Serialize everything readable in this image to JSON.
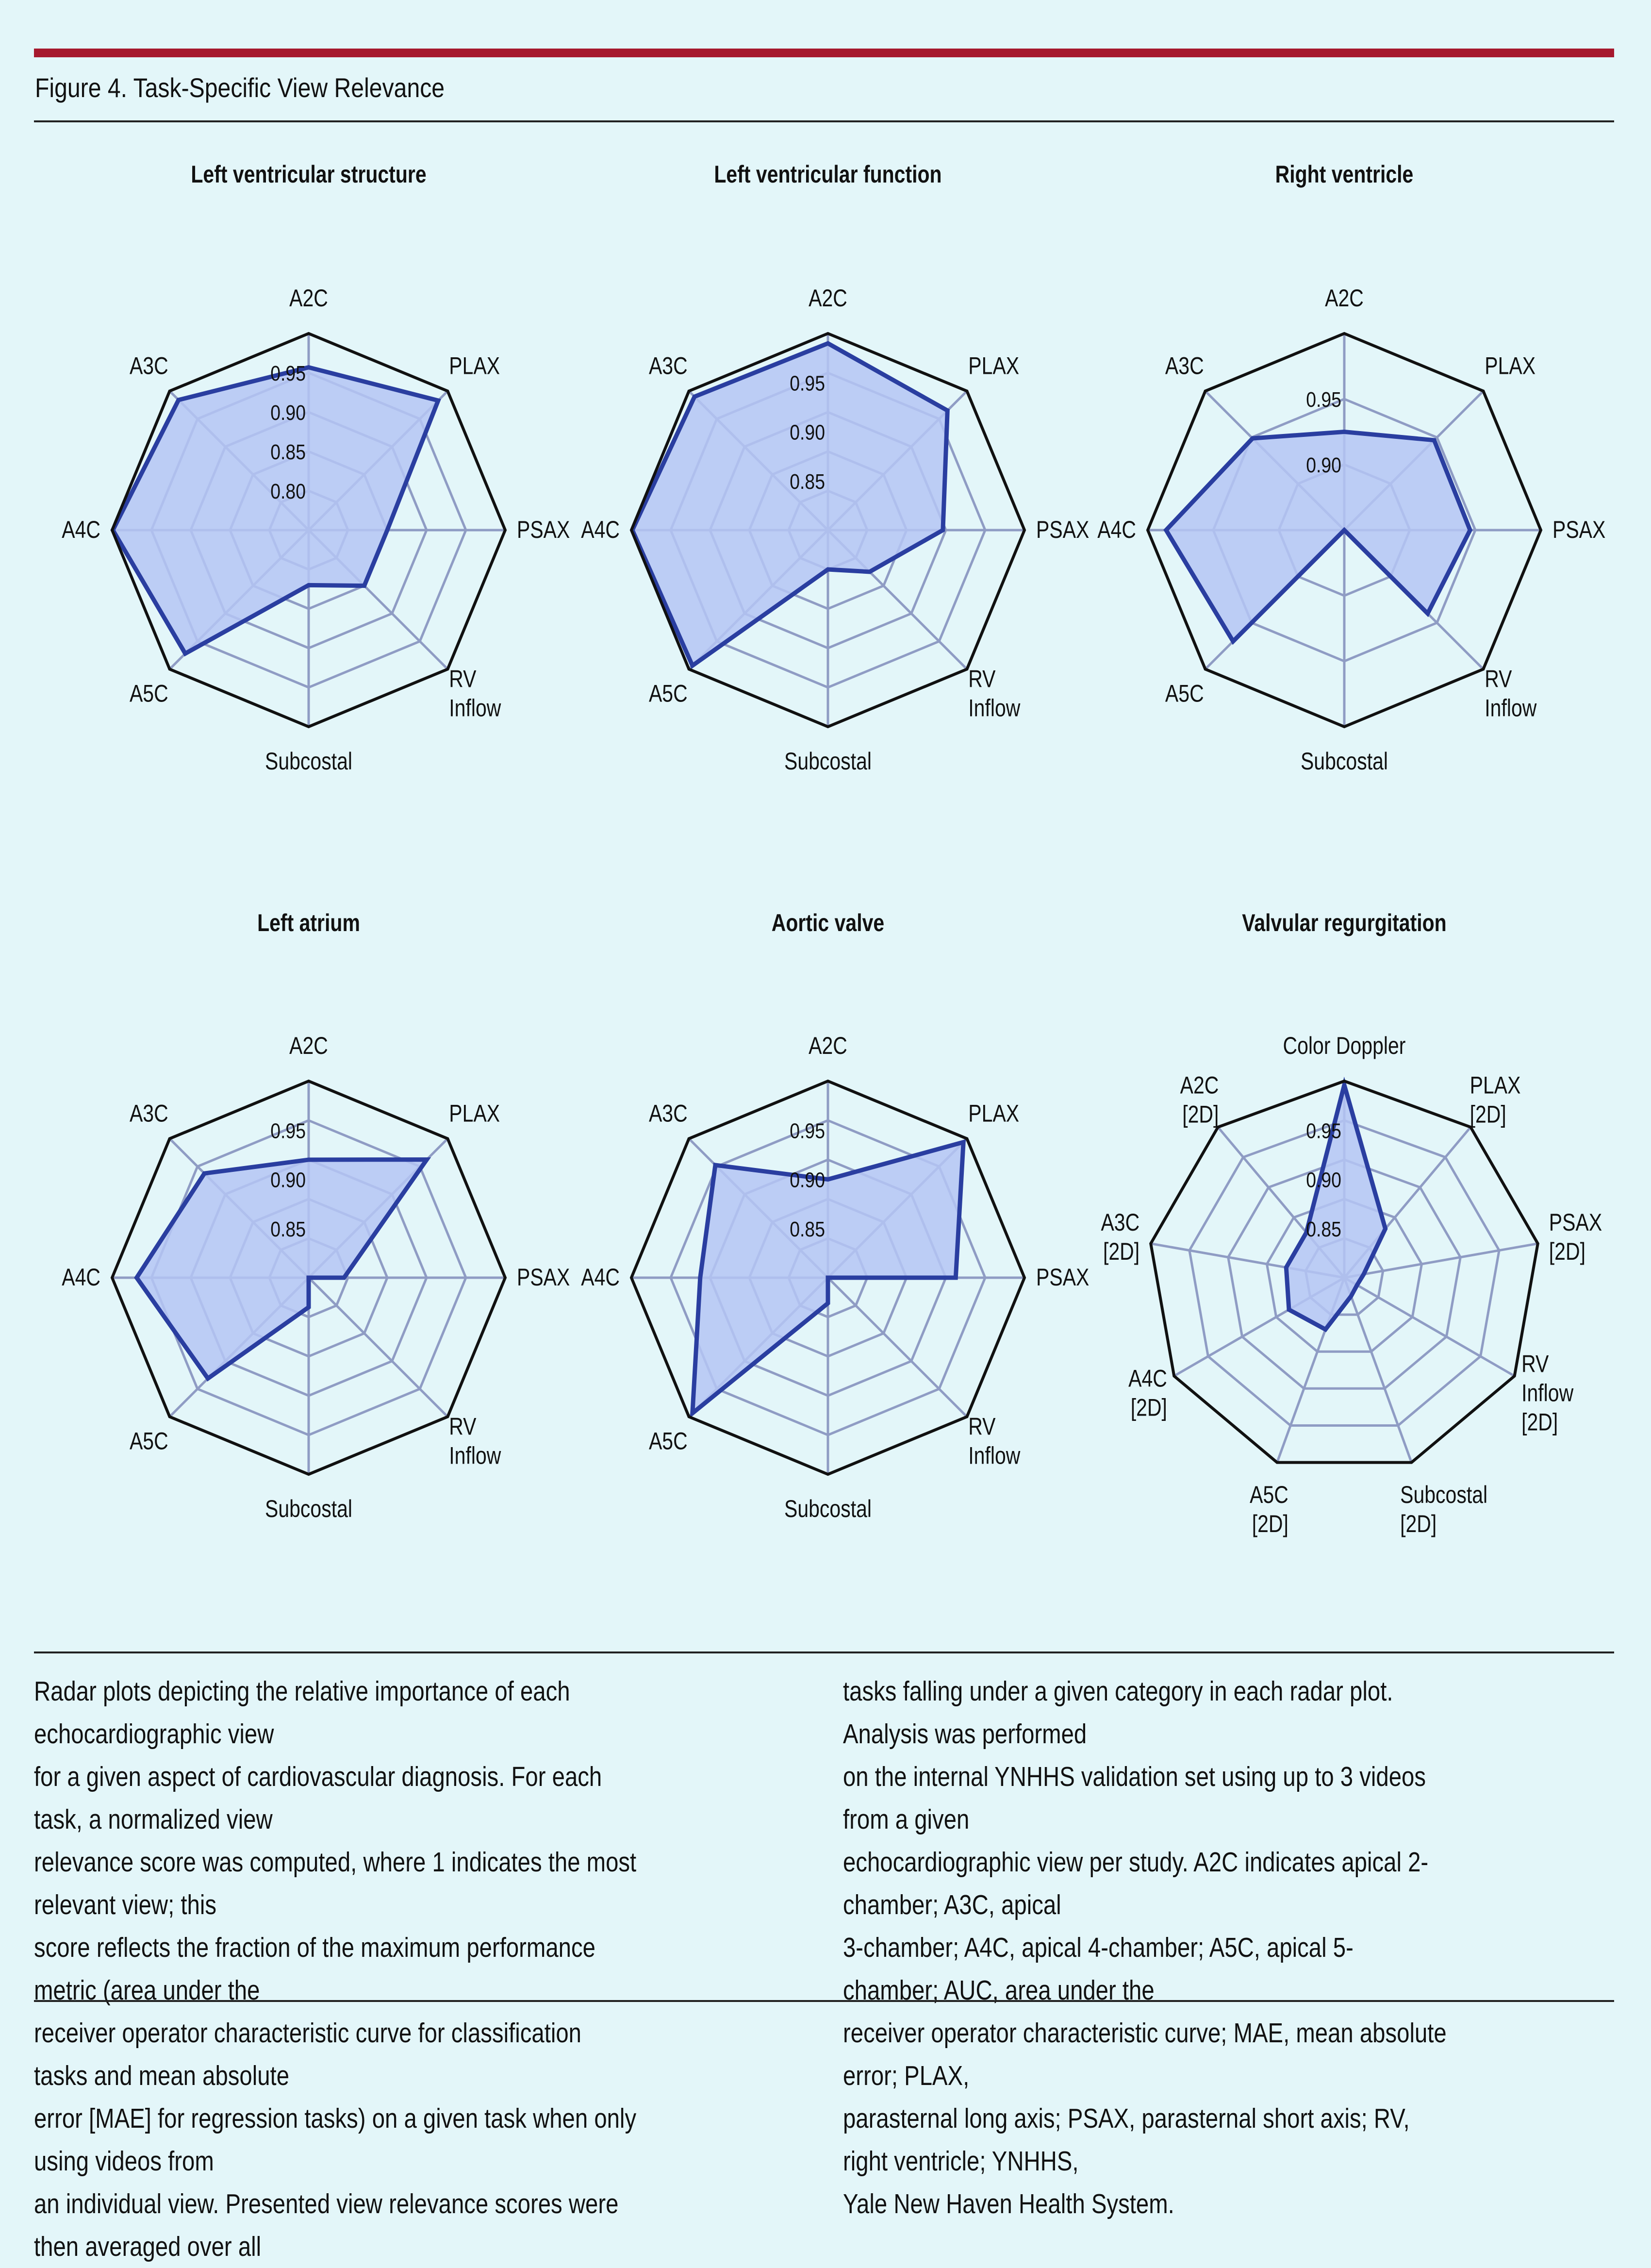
{
  "figure_title": "Figure 4. Task-Specific View Relevance",
  "caption_left": "Radar plots depicting the relative importance of each echocardiographic view\nfor a given aspect of cardiovascular diagnosis. For each task, a normalized view\nrelevance score was computed, where 1 indicates the most relevant view; this\nscore reflects the fraction of the maximum performance metric (area under the\nreceiver operator characteristic curve for classification tasks and mean absolute\nerror [MAE] for regression tasks) on a given task when only using videos from\nan individual view. Presented view relevance scores were then averaged over all",
  "caption_right": "tasks falling under a given category in each radar plot. Analysis was performed\non the internal YNHHS validation set using up to 3 videos from a given\nechocardiographic view per study. A2C indicates apical 2-chamber; A3C, apical\n3-chamber; A4C, apical 4-chamber; A5C, apical 5-chamber; AUC, area under the\nreceiver operator characteristic curve; MAE, mean absolute error; PLAX,\nparasternal long axis; PSAX, parasternal short axis; RV, right ventricle; YNHHS,\nYale New Haven Health System.",
  "colors": {
    "accent_rule": "#a6192e",
    "series_line": "#2a3ea0",
    "series_fill": "#b5c5f4",
    "grid": "#8f9cc4",
    "outline": "#111111"
  },
  "chart_data": [
    {
      "type": "radar",
      "title": "Left ventricular structure",
      "axes": [
        "A2C",
        "PLAX",
        "PSAX",
        "RV Inflow",
        "Subcostal",
        "A5C",
        "A4C",
        "A3C"
      ],
      "tick_labels": [
        "0.80",
        "0.85",
        "0.90",
        "0.95"
      ],
      "rmin": 0.75,
      "rmax": 1.0,
      "rings": 5,
      "values": [
        0.957,
        0.983,
        0.85,
        0.85,
        0.82,
        0.972,
        0.999,
        0.984
      ]
    },
    {
      "type": "radar",
      "title": "Left ventricular function",
      "axes": [
        "A2C",
        "PLAX",
        "PSAX",
        "RV Inflow",
        "Subcostal",
        "A5C",
        "A4C",
        "A3C"
      ],
      "tick_labels": [
        "0.85",
        "0.90",
        "0.95"
      ],
      "rmin": 0.8,
      "rmax": 1.0,
      "rings": 5,
      "values": [
        0.99,
        0.972,
        0.917,
        0.86,
        0.84,
        0.995,
        0.999,
        0.992
      ]
    },
    {
      "type": "radar",
      "title": "Right ventricle",
      "axes": [
        "A2C",
        "PLAX",
        "PSAX",
        "RV Inflow",
        "Subcostal",
        "A5C",
        "A4C",
        "A3C"
      ],
      "tick_labels": [
        "0.90",
        "0.95"
      ],
      "rmin": 0.85,
      "rmax": 1.0,
      "rings": 3,
      "values": [
        0.925,
        0.947,
        0.946,
        0.94,
        0.85,
        0.97,
        0.986,
        0.949
      ]
    },
    {
      "type": "radar",
      "title": "Left atrium",
      "axes": [
        "A2C",
        "PLAX",
        "PSAX",
        "RV Inflow",
        "Subcostal",
        "A5C",
        "A4C",
        "A3C"
      ],
      "tick_labels": [
        "0.85",
        "0.90",
        "0.95"
      ],
      "rmin": 0.8,
      "rmax": 1.0,
      "rings": 5,
      "values": [
        0.92,
        0.97,
        0.836,
        0.8,
        0.83,
        0.945,
        0.975,
        0.95
      ]
    },
    {
      "type": "radar",
      "title": "Aortic valve",
      "axes": [
        "A2C",
        "PLAX",
        "PSAX",
        "RV Inflow",
        "Subcostal",
        "A5C",
        "A4C",
        "A3C"
      ],
      "tick_labels": [
        "0.85",
        "0.90",
        "0.95"
      ],
      "rmin": 0.8,
      "rmax": 1.0,
      "rings": 5,
      "values": [
        0.9,
        0.995,
        0.93,
        0.8,
        0.826,
        0.995,
        0.93,
        0.962
      ]
    },
    {
      "type": "radar",
      "title": "Valvular regurgitation",
      "axes": [
        "Color Doppler",
        "PLAX [2D]",
        "PSAX [2D]",
        "RV Inflow [2D]",
        "Subcostal [2D]",
        "A5C [2D]",
        "A4C [2D]",
        "A3C [2D]",
        "A2C [2D]"
      ],
      "tick_labels": [
        "0.85",
        "0.90",
        "0.95"
      ],
      "rmin": 0.8,
      "rmax": 1.0,
      "rings": 5,
      "values": [
        0.996,
        0.865,
        0.82,
        0.815,
        0.82,
        0.856,
        0.865,
        0.86,
        0.86
      ]
    }
  ]
}
